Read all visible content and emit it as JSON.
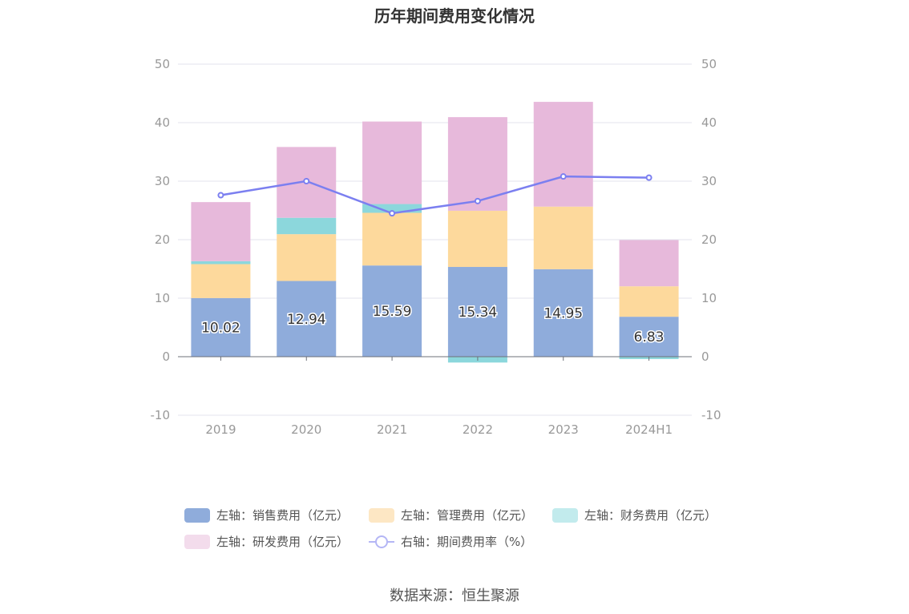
{
  "chart_data": {
    "type": "bar",
    "title": "历年期间费用变化情况",
    "categories": [
      "2019",
      "2020",
      "2021",
      "2022",
      "2023",
      "2024H1"
    ],
    "series": [
      {
        "name": "左轴：销售费用（亿元）",
        "axis": "left",
        "color": "#8facdb",
        "legend_color": "#8facdb",
        "values": [
          10.02,
          12.94,
          15.59,
          15.34,
          14.95,
          6.83
        ]
      },
      {
        "name": "左轴：管理费用（亿元）",
        "axis": "left",
        "color": "#fdd99c",
        "legend_color": "#fde7c4",
        "values": [
          5.8,
          8.0,
          9.0,
          9.6,
          10.7,
          5.2
        ]
      },
      {
        "name": "左轴：财务费用（亿元）",
        "axis": "left",
        "color": "#8cd7dc",
        "legend_color": "#c2ebed",
        "values": [
          0.5,
          2.8,
          1.5,
          -1.0,
          0.0,
          -0.4
        ]
      },
      {
        "name": "左轴：研发费用（亿元）",
        "axis": "left",
        "color": "#e7b9db",
        "legend_color": "#f3dcec",
        "values": [
          10.1,
          12.1,
          14.1,
          16.0,
          17.9,
          7.9
        ]
      },
      {
        "name": "右轴：期间费用率（%）",
        "axis": "right",
        "type": "line",
        "color": "#7b7ff0",
        "values": [
          27.6,
          30.0,
          24.5,
          26.6,
          30.8,
          30.6
        ]
      }
    ],
    "data_labels": [
      "10.02",
      "12.94",
      "15.59",
      "15.34",
      "14.95",
      "6.83"
    ],
    "ylim": [
      -10,
      50
    ],
    "y2lim": [
      -10,
      50
    ],
    "yticks": [
      "50",
      "40",
      "30",
      "20",
      "10",
      "0",
      "-10"
    ],
    "y2ticks": [
      "50",
      "40",
      "30",
      "20",
      "10",
      "0",
      "-10"
    ],
    "legend_position": "bottom"
  },
  "source_text": "数据来源：恒生聚源"
}
